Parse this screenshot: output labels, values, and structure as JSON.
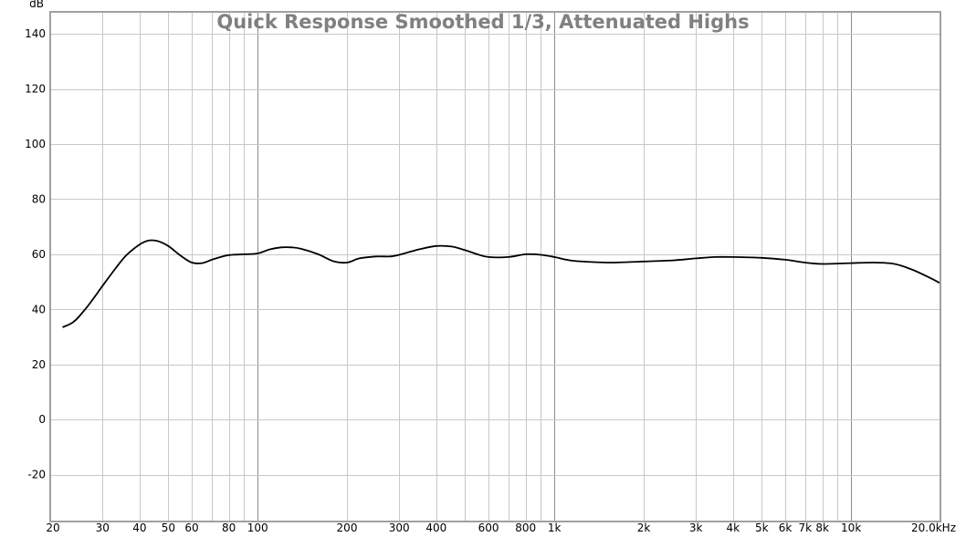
{
  "chart_data": {
    "type": "line",
    "title": "Quick Response Smoothed 1/3, Attenuated Highs",
    "y_unit_label": "dB",
    "x_scale": "log",
    "xlim": [
      20,
      20000
    ],
    "ylim": [
      -37,
      148
    ],
    "y_ticks": [
      140,
      120,
      100,
      80,
      60,
      40,
      20,
      0,
      -20
    ],
    "x_ticks": [
      {
        "value": 20,
        "label": "20"
      },
      {
        "value": 30,
        "label": "30"
      },
      {
        "value": 40,
        "label": "40"
      },
      {
        "value": 50,
        "label": "50"
      },
      {
        "value": 60,
        "label": "60"
      },
      {
        "value": 80,
        "label": "80"
      },
      {
        "value": 100,
        "label": "100"
      },
      {
        "value": 200,
        "label": "200"
      },
      {
        "value": 300,
        "label": "300"
      },
      {
        "value": 400,
        "label": "400"
      },
      {
        "value": 600,
        "label": "600"
      },
      {
        "value": 800,
        "label": "800"
      },
      {
        "value": 1000,
        "label": "1k"
      },
      {
        "value": 2000,
        "label": "2k"
      },
      {
        "value": 3000,
        "label": "3k"
      },
      {
        "value": 4000,
        "label": "4k"
      },
      {
        "value": 5000,
        "label": "5k"
      },
      {
        "value": 6000,
        "label": "6k"
      },
      {
        "value": 7000,
        "label": "7k"
      },
      {
        "value": 8000,
        "label": "8k"
      },
      {
        "value": 10000,
        "label": "10k"
      },
      {
        "value": 20000,
        "label": "20.0kHz"
      }
    ],
    "grid": true,
    "colors": {
      "line": "#000000",
      "title": "#808080",
      "grid_minor": "#c8c8c8",
      "grid_major": "#8c8c8c",
      "frame": "#a0a0a0"
    },
    "series": [
      {
        "x": [
          22,
          24,
          26,
          28,
          30,
          33,
          36,
          40,
          43,
          46,
          50,
          55,
          60,
          65,
          70,
          75,
          80,
          90,
          100,
          110,
          120,
          130,
          140,
          160,
          180,
          200,
          220,
          250,
          280,
          300,
          350,
          400,
          450,
          500,
          550,
          600,
          700,
          800,
          900,
          1000,
          1100,
          1200,
          1500,
          1800,
          2000,
          2500,
          3000,
          3500,
          4000,
          5000,
          6000,
          7000,
          8000,
          10000,
          12000,
          14000,
          16000,
          18000,
          20000
        ],
        "y": [
          33.5,
          35.5,
          39.5,
          44,
          48.5,
          54.5,
          59.5,
          63.5,
          65,
          64.8,
          63,
          59.5,
          57,
          56.8,
          58,
          59,
          59.7,
          60,
          60.3,
          61.8,
          62.5,
          62.5,
          62,
          60,
          57.5,
          57,
          58.5,
          59.2,
          59.2,
          59.8,
          61.8,
          63,
          62.8,
          61.5,
          60,
          59,
          59,
          60,
          59.8,
          59,
          58,
          57.5,
          57,
          57.2,
          57.4,
          57.8,
          58.5,
          59,
          59,
          58.7,
          58,
          57,
          56.5,
          56.8,
          57,
          56.5,
          54.5,
          52,
          49.5
        ]
      }
    ]
  }
}
